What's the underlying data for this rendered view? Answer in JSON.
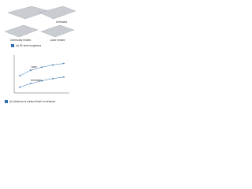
{
  "figure_a": {
    "panels": [
      "Untreated",
      "Chemically treated",
      "Laser treated"
    ],
    "caption": "(a) 3D steel roughness"
  },
  "chart_data": {
    "type": "scatter",
    "caption": "(b) Influence of surface finish on behavior",
    "xlim": [
      0,
      1
    ],
    "ylim": [
      0,
      1
    ],
    "series": [
      {
        "name": "Laser",
        "color": "#2a6fb0",
        "x": [
          0.1,
          0.3,
          0.5,
          0.7,
          0.9
        ],
        "values": [
          0.45,
          0.6,
          0.68,
          0.74,
          0.78
        ]
      },
      {
        "name": "Untreated",
        "color": "#2a6fb0",
        "x": [
          0.1,
          0.3,
          0.5,
          0.7,
          0.9
        ],
        "values": [
          0.15,
          0.25,
          0.32,
          0.38,
          0.42
        ]
      }
    ]
  }
}
